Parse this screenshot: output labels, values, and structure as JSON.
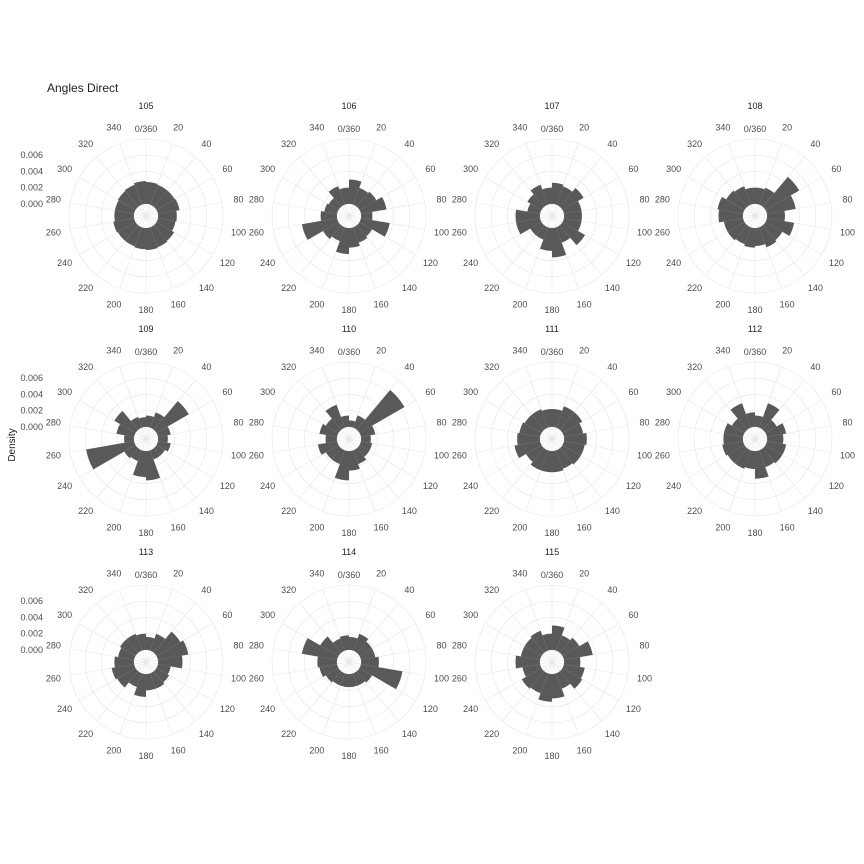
{
  "chart_data": {
    "type": "polar-bar",
    "title": "Angles Direct",
    "ylabel": "Density",
    "y_ticks": [
      "0.000",
      "0.002",
      "0.004",
      "0.006"
    ],
    "ylim": [
      -0.0015,
      0.008
    ],
    "angle_ticks": [
      "0/360",
      "20",
      "40",
      "60",
      "80",
      "100",
      "120",
      "140",
      "160",
      "180",
      "200",
      "220",
      "240",
      "260",
      "280",
      "300",
      "320",
      "340"
    ],
    "bin_width_deg": 20,
    "bin_starts_deg": [
      0,
      20,
      40,
      60,
      80,
      100,
      120,
      140,
      160,
      180,
      200,
      220,
      240,
      260,
      280,
      300,
      320,
      340
    ],
    "panels": [
      {
        "label": "105",
        "values": [
          0.0027,
          0.0026,
          0.0026,
          0.0027,
          0.0023,
          0.0022,
          0.0025,
          0.0026,
          0.0027,
          0.0026,
          0.0025,
          0.0025,
          0.0026,
          0.0024,
          0.0024,
          0.0025,
          0.0026,
          0.0028
        ]
      },
      {
        "label": "106",
        "values": [
          0.003,
          0.0022,
          0.0024,
          0.0032,
          0.0014,
          0.0036,
          0.0018,
          0.002,
          0.0024,
          0.0032,
          0.0018,
          0.0022,
          0.0044,
          0.002,
          0.0016,
          0.0014,
          0.0024,
          0.002
        ]
      },
      {
        "label": "107",
        "values": [
          0.0026,
          0.0024,
          0.003,
          0.0022,
          0.0022,
          0.0022,
          0.0032,
          0.002,
          0.0036,
          0.0028,
          0.0016,
          0.0016,
          0.003,
          0.003,
          0.0016,
          0.002,
          0.0026,
          0.002
        ]
      },
      {
        "label": "108",
        "values": [
          0.002,
          0.0022,
          0.0048,
          0.0036,
          0.0022,
          0.0034,
          0.0024,
          0.0026,
          0.0022,
          0.0024,
          0.0022,
          0.0024,
          0.0024,
          0.003,
          0.0032,
          0.0026,
          0.0024,
          0.002
        ]
      },
      {
        "label": "109",
        "values": [
          0.0014,
          0.002,
          0.0046,
          0.0016,
          0.0012,
          0.0016,
          0.0012,
          0.0012,
          0.0036,
          0.0032,
          0.0014,
          0.0016,
          0.006,
          0.0012,
          0.0022,
          0.003,
          0.0014,
          0.0012
        ]
      },
      {
        "label": "110",
        "values": [
          0.0008,
          0.0016,
          0.0064,
          0.0018,
          0.0012,
          0.0014,
          0.0014,
          0.0018,
          0.0024,
          0.0036,
          0.0018,
          0.0018,
          0.0024,
          0.0014,
          0.0022,
          0.0018,
          0.003,
          0.0014
        ]
      },
      {
        "label": "111",
        "values": [
          0.0022,
          0.0028,
          0.0028,
          0.0024,
          0.0028,
          0.0026,
          0.0026,
          0.0024,
          0.0026,
          0.0026,
          0.0026,
          0.0022,
          0.0032,
          0.0028,
          0.0026,
          0.0024,
          0.0024,
          0.0022
        ]
      },
      {
        "label": "112",
        "values": [
          0.0014,
          0.0032,
          0.0016,
          0.0024,
          0.002,
          0.0024,
          0.0024,
          0.0022,
          0.0034,
          0.0022,
          0.0024,
          0.0024,
          0.0026,
          0.0024,
          0.0024,
          0.0018,
          0.0032,
          0.0018
        ]
      },
      {
        "label": "113",
        "values": [
          0.0016,
          0.0022,
          0.0034,
          0.0038,
          0.003,
          0.0016,
          0.0018,
          0.002,
          0.002,
          0.0028,
          0.0018,
          0.0026,
          0.0028,
          0.0024,
          0.002,
          0.0022,
          0.0022,
          0.002
        ]
      },
      {
        "label": "114",
        "values": [
          0.0016,
          0.0022,
          0.0018,
          0.0018,
          0.0022,
          0.0052,
          0.0018,
          0.0016,
          0.0016,
          0.0016,
          0.0016,
          0.0018,
          0.0022,
          0.0024,
          0.0044,
          0.0026,
          0.0016,
          0.0018
        ]
      },
      {
        "label": "115",
        "values": [
          0.003,
          0.002,
          0.0024,
          0.0036,
          0.002,
          0.0026,
          0.0028,
          0.002,
          0.003,
          0.0034,
          0.0026,
          0.0028,
          0.0022,
          0.003,
          0.0024,
          0.0024,
          0.0026,
          0.002
        ]
      }
    ]
  }
}
